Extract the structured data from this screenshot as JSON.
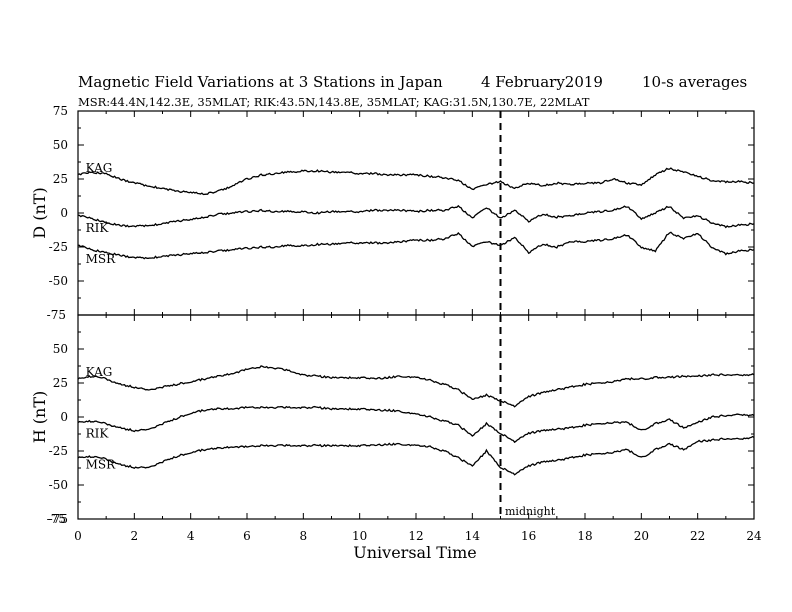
{
  "chart_data": {
    "type": "line",
    "title": "Magnetic Field Variations at 3 Stations in Japan",
    "date": "4   February2019",
    "averaging": "10-s averages",
    "subtitle": "MSR:44.4N,142.3E, 35MLAT;  RIK:43.5N,143.8E, 35MLAT;  KAG:31.5N,130.7E, 22MLAT",
    "xlabel": "Universal Time",
    "xlim": [
      0,
      24
    ],
    "xticks": [
      0,
      2,
      4,
      6,
      8,
      10,
      12,
      14,
      16,
      18,
      20,
      22,
      24
    ],
    "xtick_labels": [
      "0",
      "2",
      "4",
      "6",
      "8",
      "10",
      "12",
      "14",
      "16",
      "18",
      "20",
      "22",
      "24"
    ],
    "midnight_marker": {
      "x": 15,
      "label": "midnight",
      "style": "dashed"
    },
    "panels": [
      {
        "ylabel": "D (nT)",
        "ylim": [
          -75,
          75
        ],
        "yticks": [
          75,
          50,
          25,
          0,
          -25,
          -50
        ],
        "ytick_labels": [
          "75",
          "50",
          "25",
          "0",
          "-25",
          "-50"
        ],
        "series": [
          {
            "name": "KAG",
            "label_at": [
              0.2,
              33
            ],
            "x": [
              0,
              0.5,
              1,
              1.5,
              2,
              2.5,
              3,
              3.5,
              4,
              4.5,
              5,
              5.5,
              6,
              6.5,
              7,
              7.5,
              8,
              8.5,
              9,
              9.5,
              10,
              10.5,
              11,
              11.5,
              12,
              12.5,
              13,
              13.5,
              14,
              14.5,
              15,
              15.5,
              16,
              16.5,
              17,
              17.5,
              18,
              18.5,
              19,
              19.5,
              20,
              20.5,
              21,
              21.5,
              22,
              22.5,
              23,
              23.5,
              24
            ],
            "values": [
              28,
              30,
              29,
              25,
              22,
              20,
              18,
              16,
              15,
              14,
              16,
              20,
              25,
              28,
              29,
              30,
              31,
              31,
              30,
              30,
              29,
              29,
              28,
              28,
              28,
              27,
              26,
              24,
              17,
              21,
              23,
              18,
              22,
              20,
              22,
              21,
              22,
              22,
              25,
              22,
              21,
              28,
              33,
              30,
              27,
              24,
              23,
              23,
              22
            ]
          },
          {
            "name": "RIK",
            "label_at": [
              0.2,
              -11
            ],
            "x": [
              0,
              0.5,
              1,
              1.5,
              2,
              2.5,
              3,
              3.5,
              4,
              4.5,
              5,
              5.5,
              6,
              6.5,
              7,
              7.5,
              8,
              8.5,
              9,
              9.5,
              10,
              10.5,
              11,
              11.5,
              12,
              12.5,
              13,
              13.5,
              14,
              14.5,
              15,
              15.5,
              16,
              16.5,
              17,
              17.5,
              18,
              18.5,
              19,
              19.5,
              20,
              20.5,
              21,
              21.5,
              22,
              22.5,
              23,
              23.5,
              24
            ],
            "values": [
              -2,
              -4,
              -7,
              -9,
              -10,
              -9,
              -8,
              -6,
              -5,
              -3,
              -1,
              0,
              1,
              2,
              1,
              1,
              1,
              0,
              1,
              1,
              1,
              2,
              2,
              2,
              1,
              2,
              2,
              5,
              -4,
              4,
              -4,
              2,
              -6,
              -1,
              -3,
              -2,
              0,
              1,
              2,
              5,
              -4,
              0,
              5,
              -4,
              -2,
              -7,
              -10,
              -9,
              -8
            ]
          },
          {
            "name": "MSR",
            "label_at": [
              0.2,
              -34
            ],
            "x": [
              0,
              0.5,
              1,
              1.5,
              2,
              2.5,
              3,
              3.5,
              4,
              4.5,
              5,
              5.5,
              6,
              6.5,
              7,
              7.5,
              8,
              8.5,
              9,
              9.5,
              10,
              10.5,
              11,
              11.5,
              12,
              12.5,
              13,
              13.5,
              14,
              14.5,
              15,
              15.5,
              16,
              16.5,
              17,
              17.5,
              18,
              18.5,
              19,
              19.5,
              20,
              20.5,
              21,
              21.5,
              22,
              22.5,
              23,
              23.5,
              24
            ],
            "values": [
              -24,
              -27,
              -29,
              -31,
              -33,
              -33,
              -32,
              -31,
              -30,
              -29,
              -28,
              -27,
              -26,
              -25,
              -25,
              -24,
              -24,
              -23,
              -23,
              -22,
              -22,
              -22,
              -22,
              -21,
              -20,
              -20,
              -19,
              -15,
              -25,
              -21,
              -24,
              -18,
              -29,
              -23,
              -25,
              -21,
              -21,
              -20,
              -19,
              -16,
              -25,
              -28,
              -14,
              -19,
              -15,
              -25,
              -30,
              -28,
              -27
            ]
          }
        ]
      },
      {
        "ylabel": "H (nT)",
        "ylim": [
          -75,
          75
        ],
        "yticks": [
          50,
          25,
          0,
          -25,
          -50,
          -75
        ],
        "ytick_labels": [
          "50",
          "25",
          "0",
          "-25",
          "-50",
          "-75"
        ],
        "series": [
          {
            "name": "KAG",
            "label_at": [
              0.2,
              33
            ],
            "x": [
              0,
              0.5,
              1,
              1.5,
              2,
              2.5,
              3,
              3.5,
              4,
              4.5,
              5,
              5.5,
              6,
              6.5,
              7,
              7.5,
              8,
              8.5,
              9,
              9.5,
              10,
              10.5,
              11,
              11.5,
              12,
              12.5,
              13,
              13.5,
              14,
              14.5,
              15,
              15.5,
              16,
              16.5,
              17,
              17.5,
              18,
              18.5,
              19,
              19.5,
              20,
              20.5,
              21,
              21.5,
              22,
              22.5,
              23,
              23.5,
              24
            ],
            "values": [
              28,
              30,
              28,
              24,
              22,
              20,
              22,
              24,
              26,
              28,
              30,
              32,
              35,
              37,
              36,
              34,
              31,
              30,
              29,
              29,
              29,
              28,
              29,
              30,
              29,
              27,
              24,
              20,
              13,
              16,
              12,
              8,
              15,
              18,
              20,
              22,
              24,
              25,
              26,
              28,
              28,
              29,
              29,
              30,
              30,
              31,
              31,
              31,
              31
            ]
          },
          {
            "name": "RIK",
            "label_at": [
              0.2,
              -12
            ],
            "x": [
              0,
              0.5,
              1,
              1.5,
              2,
              2.5,
              3,
              3.5,
              4,
              4.5,
              5,
              5.5,
              6,
              6.5,
              7,
              7.5,
              8,
              8.5,
              9,
              9.5,
              10,
              10.5,
              11,
              11.5,
              12,
              12.5,
              13,
              13.5,
              14,
              14.5,
              15,
              15.5,
              16,
              16.5,
              17,
              17.5,
              18,
              18.5,
              19,
              19.5,
              20,
              20.5,
              21,
              21.5,
              22,
              22.5,
              23,
              23.5,
              24
            ],
            "values": [
              -4,
              -3,
              -5,
              -8,
              -10,
              -9,
              -5,
              -1,
              3,
              5,
              6,
              6,
              7,
              7,
              7,
              7,
              7,
              7,
              6,
              6,
              6,
              5,
              5,
              4,
              2,
              0,
              -3,
              -6,
              -14,
              -5,
              -12,
              -18,
              -12,
              -10,
              -9,
              -8,
              -6,
              -5,
              -4,
              -4,
              -10,
              -5,
              -2,
              -8,
              -4,
              0,
              1,
              2,
              1
            ]
          },
          {
            "name": "MSR",
            "label_at": [
              0.2,
              -35
            ],
            "x": [
              0,
              0.5,
              1,
              1.5,
              2,
              2.5,
              3,
              3.5,
              4,
              4.5,
              5,
              5.5,
              6,
              6.5,
              7,
              7.5,
              8,
              8.5,
              9,
              9.5,
              10,
              10.5,
              11,
              11.5,
              12,
              12.5,
              13,
              13.5,
              14,
              14.5,
              15,
              15.5,
              16,
              16.5,
              17,
              17.5,
              18,
              18.5,
              19,
              19.5,
              20,
              20.5,
              21,
              21.5,
              22,
              22.5,
              23,
              23.5,
              24
            ],
            "values": [
              -30,
              -29,
              -31,
              -35,
              -37,
              -37,
              -33,
              -29,
              -26,
              -24,
              -23,
              -22,
              -22,
              -21,
              -21,
              -21,
              -21,
              -21,
              -21,
              -21,
              -21,
              -21,
              -20,
              -20,
              -21,
              -22,
              -25,
              -30,
              -36,
              -25,
              -37,
              -42,
              -36,
              -33,
              -32,
              -30,
              -28,
              -27,
              -26,
              -24,
              -30,
              -24,
              -20,
              -24,
              -18,
              -17,
              -16,
              -16,
              -15
            ]
          }
        ]
      }
    ]
  }
}
